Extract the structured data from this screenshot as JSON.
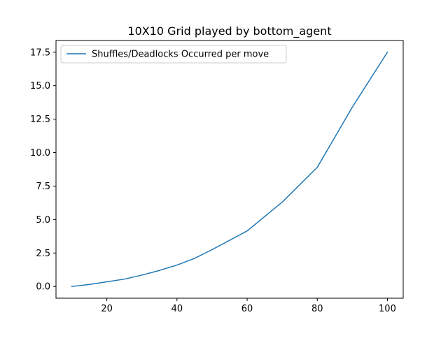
{
  "chart_data": {
    "type": "line",
    "title": "10X10 Grid played by bottom_agent",
    "xlabel": "",
    "ylabel": "",
    "xlim": [
      5.5,
      104.5
    ],
    "ylim": [
      -0.875,
      18.375
    ],
    "xticks": [
      20,
      40,
      60,
      80,
      100
    ],
    "xtick_labels": [
      "20",
      "40",
      "60",
      "80",
      "100"
    ],
    "yticks": [
      0,
      2.5,
      5,
      7.5,
      10,
      12.5,
      15,
      17.5
    ],
    "ytick_labels": [
      "0.0",
      "2.5",
      "5.0",
      "7.5",
      "10.0",
      "12.5",
      "15.0",
      "17.5"
    ],
    "grid": false,
    "legend_position": "upper-left",
    "series": [
      {
        "name": "Shuffles/Deadlocks Occurred per move",
        "color": "#1f77b4",
        "x": [
          10,
          15,
          20,
          25,
          30,
          35,
          40,
          45,
          50,
          60,
          70,
          80,
          90,
          100
        ],
        "y": [
          0.0,
          0.15,
          0.35,
          0.55,
          0.85,
          1.2,
          1.6,
          2.1,
          2.75,
          4.15,
          6.3,
          8.9,
          13.4,
          17.5
        ]
      }
    ]
  }
}
